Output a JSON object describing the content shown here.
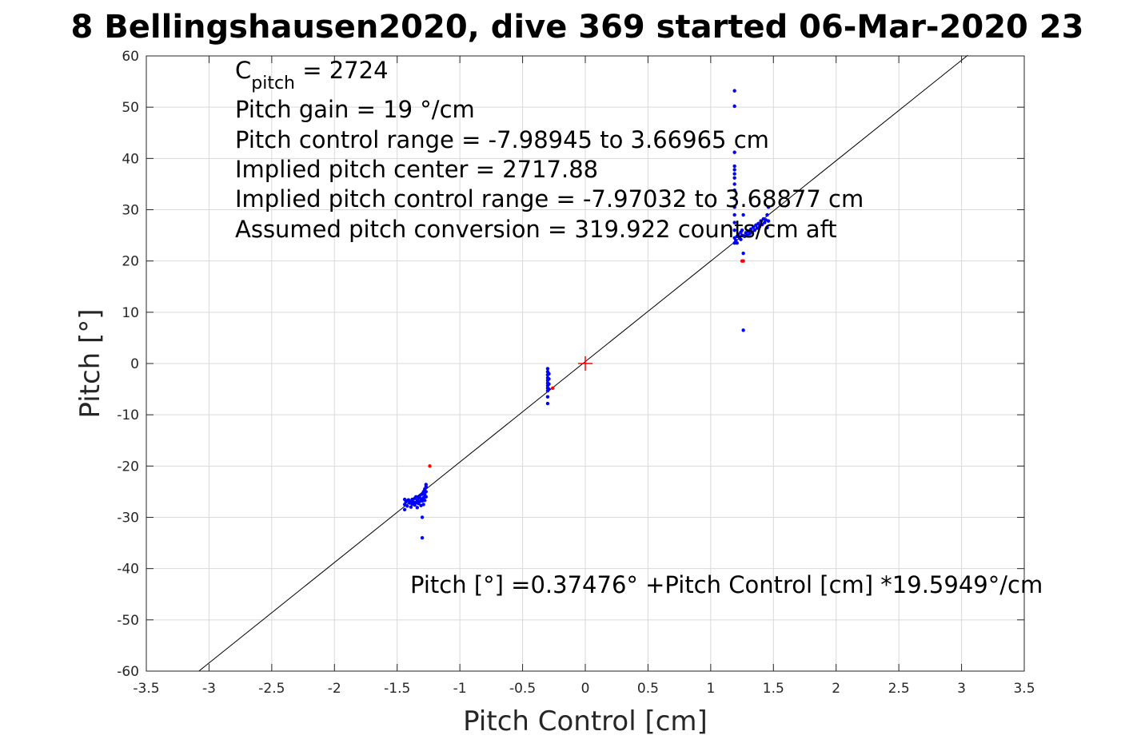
{
  "chart_data": {
    "type": "scatter",
    "title": "8 Bellingshausen2020, dive 369 started 06-Mar-2020 23",
    "xlabel": "Pitch Control [cm]",
    "ylabel": "Pitch [°]",
    "xlim": [
      -3.5,
      3.5
    ],
    "ylim": [
      -60,
      60
    ],
    "grid": true,
    "x_ticks": [
      "-3.5",
      "-3",
      "-2.5",
      "-2",
      "-1.5",
      "-1",
      "-0.5",
      "0",
      "0.5",
      "1",
      "1.5",
      "2",
      "2.5",
      "3",
      "3.5"
    ],
    "y_ticks": [
      "60",
      "50",
      "40",
      "30",
      "20",
      "10",
      "0",
      "-10",
      "-20",
      "-30",
      "-40",
      "-50",
      "-60"
    ],
    "colors": {
      "primary": "#0000ff",
      "flagged": "#ff0000",
      "fit": "#000000",
      "center": "#ff0000",
      "grid": "#d9d9d9",
      "axes": "#262626"
    },
    "annotations": {
      "c_pitch_main": "C",
      "c_pitch_sub": "pitch",
      "c_pitch_rest": " = 2724",
      "gain": "Pitch gain = 19 °/cm",
      "control_range": "Pitch control range = -7.98945 to 3.66965 cm",
      "implied_center": "Implied pitch center = 2717.88",
      "implied_range": "Implied pitch control range = -7.97032 to 3.68877 cm",
      "conversion": "Assumed pitch conversion = 319.922 counts/cm aft",
      "fit_equation": "Pitch [°] =0.37476° +Pitch Control [cm] *19.5949°/cm"
    },
    "fit_line": {
      "intercept": 0.37476,
      "slope": 19.5949,
      "x_range": [
        -3.08,
        3.05
      ]
    },
    "center_marker": {
      "x": 0,
      "y": 0
    },
    "series": [
      {
        "color": "#0000ff",
        "points": [
          [
            -1.44,
            -26.5
          ],
          [
            -1.44,
            -27.5
          ],
          [
            -1.44,
            -28.5
          ],
          [
            -1.43,
            -27.0
          ],
          [
            -1.42,
            -26.8
          ],
          [
            -1.42,
            -27.8
          ],
          [
            -1.41,
            -26.6
          ],
          [
            -1.4,
            -27.2
          ],
          [
            -1.39,
            -26.9
          ],
          [
            -1.39,
            -28.0
          ],
          [
            -1.38,
            -27.4
          ],
          [
            -1.38,
            -26.5
          ],
          [
            -1.37,
            -27.0
          ],
          [
            -1.36,
            -26.3
          ],
          [
            -1.36,
            -27.6
          ],
          [
            -1.35,
            -26.0
          ],
          [
            -1.35,
            -27.1
          ],
          [
            -1.34,
            -26.7
          ],
          [
            -1.34,
            -28.1
          ],
          [
            -1.33,
            -26.2
          ],
          [
            -1.33,
            -27.3
          ],
          [
            -1.32,
            -25.8
          ],
          [
            -1.32,
            -26.9
          ],
          [
            -1.31,
            -26.4
          ],
          [
            -1.31,
            -27.7
          ],
          [
            -1.3,
            -25.5
          ],
          [
            -1.3,
            -26.8
          ],
          [
            -1.3,
            -30.0
          ],
          [
            -1.3,
            -34.0
          ],
          [
            -1.29,
            -25.0
          ],
          [
            -1.29,
            -26.2
          ],
          [
            -1.29,
            -27.5
          ],
          [
            -1.28,
            -24.5
          ],
          [
            -1.28,
            -25.6
          ],
          [
            -1.28,
            -26.7
          ],
          [
            -1.27,
            -24.0
          ],
          [
            -1.27,
            -25.0
          ],
          [
            -1.27,
            -26.0
          ],
          [
            -1.27,
            -23.6
          ],
          [
            -0.3,
            -1.0
          ],
          [
            -0.3,
            -1.6
          ],
          [
            -0.3,
            -2.2
          ],
          [
            -0.3,
            -2.8
          ],
          [
            -0.3,
            -3.3
          ],
          [
            -0.3,
            -3.8
          ],
          [
            -0.3,
            -4.3
          ],
          [
            -0.3,
            -4.8
          ],
          [
            -0.3,
            -5.3
          ],
          [
            -0.3,
            -6.5
          ],
          [
            -0.3,
            -7.8
          ],
          [
            -0.29,
            -2.0
          ],
          [
            -0.29,
            -3.0
          ],
          [
            -0.29,
            -4.0
          ],
          [
            -0.29,
            -5.0
          ],
          [
            1.19,
            53.2
          ],
          [
            1.19,
            50.2
          ],
          [
            1.19,
            41.2
          ],
          [
            1.19,
            38.5
          ],
          [
            1.19,
            37.8
          ],
          [
            1.19,
            37.0
          ],
          [
            1.19,
            36.2
          ],
          [
            1.19,
            35.0
          ],
          [
            1.19,
            33.8
          ],
          [
            1.19,
            32.2
          ],
          [
            1.19,
            30.5
          ],
          [
            1.19,
            29.0
          ],
          [
            1.19,
            27.5
          ],
          [
            1.19,
            26.0
          ],
          [
            1.19,
            24.5
          ],
          [
            1.19,
            23.5
          ],
          [
            1.2,
            24.0
          ],
          [
            1.21,
            24.8
          ],
          [
            1.21,
            23.5
          ],
          [
            1.22,
            25.2
          ],
          [
            1.23,
            24.5
          ],
          [
            1.24,
            25.6
          ],
          [
            1.24,
            24.2
          ],
          [
            1.25,
            25.0
          ],
          [
            1.25,
            26.0
          ],
          [
            1.26,
            29.0
          ],
          [
            1.26,
            21.5
          ],
          [
            1.26,
            6.5
          ],
          [
            1.27,
            24.8
          ],
          [
            1.28,
            25.5
          ],
          [
            1.29,
            25.0
          ],
          [
            1.3,
            25.8
          ],
          [
            1.31,
            25.3
          ],
          [
            1.32,
            26.2
          ],
          [
            1.33,
            25.6
          ],
          [
            1.34,
            26.6
          ],
          [
            1.35,
            26.0
          ],
          [
            1.36,
            27.0
          ],
          [
            1.37,
            26.4
          ],
          [
            1.38,
            27.3
          ],
          [
            1.39,
            26.7
          ],
          [
            1.4,
            27.8
          ],
          [
            1.41,
            27.1
          ],
          [
            1.42,
            28.2
          ],
          [
            1.43,
            27.5
          ],
          [
            1.44,
            28.0
          ],
          [
            1.45,
            26.5
          ],
          [
            1.45,
            29.0
          ],
          [
            1.46,
            30.5
          ],
          [
            1.46,
            27.8
          ]
        ]
      },
      {
        "color": "#ff0000",
        "points": [
          [
            -1.24,
            -20.0
          ],
          [
            -0.26,
            -4.8
          ],
          [
            1.25,
            20.0
          ],
          [
            1.26,
            20.0
          ]
        ]
      }
    ]
  }
}
